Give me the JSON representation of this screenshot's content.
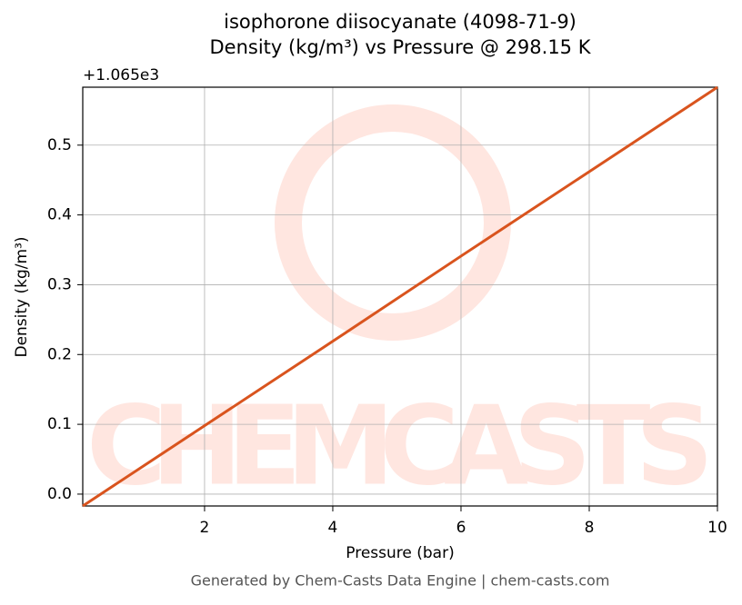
{
  "chart_data": {
    "type": "line",
    "title": [
      "isophorone diisocyanate (4098-71-9)",
      "Density (kg/m³) vs Pressure @ 298.15 K"
    ],
    "x_label": "Pressure (bar)",
    "y_label": "Density (kg/m³)",
    "y_offset_label": "+1.065e3",
    "watermark": "CHEMCASTS",
    "footer": "Generated by Chem-Casts Data Engine | chem-casts.com",
    "x": [
      0.1,
      2,
      4,
      6,
      8,
      10
    ],
    "series": [
      {
        "name": "Density",
        "color": "#d9541e",
        "values": [
          -0.017,
          0.098,
          0.219,
          0.341,
          0.462,
          0.583
        ]
      }
    ],
    "xlim": [
      0.1,
      10
    ],
    "xticks": [
      2,
      4,
      6,
      8,
      10
    ],
    "ylim": [
      -0.017,
      0.583
    ],
    "yticks": [
      {
        "value": 0,
        "label": "0.0"
      },
      0.1,
      0.2,
      0.3,
      0.4,
      0.5
    ],
    "grid": true
  }
}
